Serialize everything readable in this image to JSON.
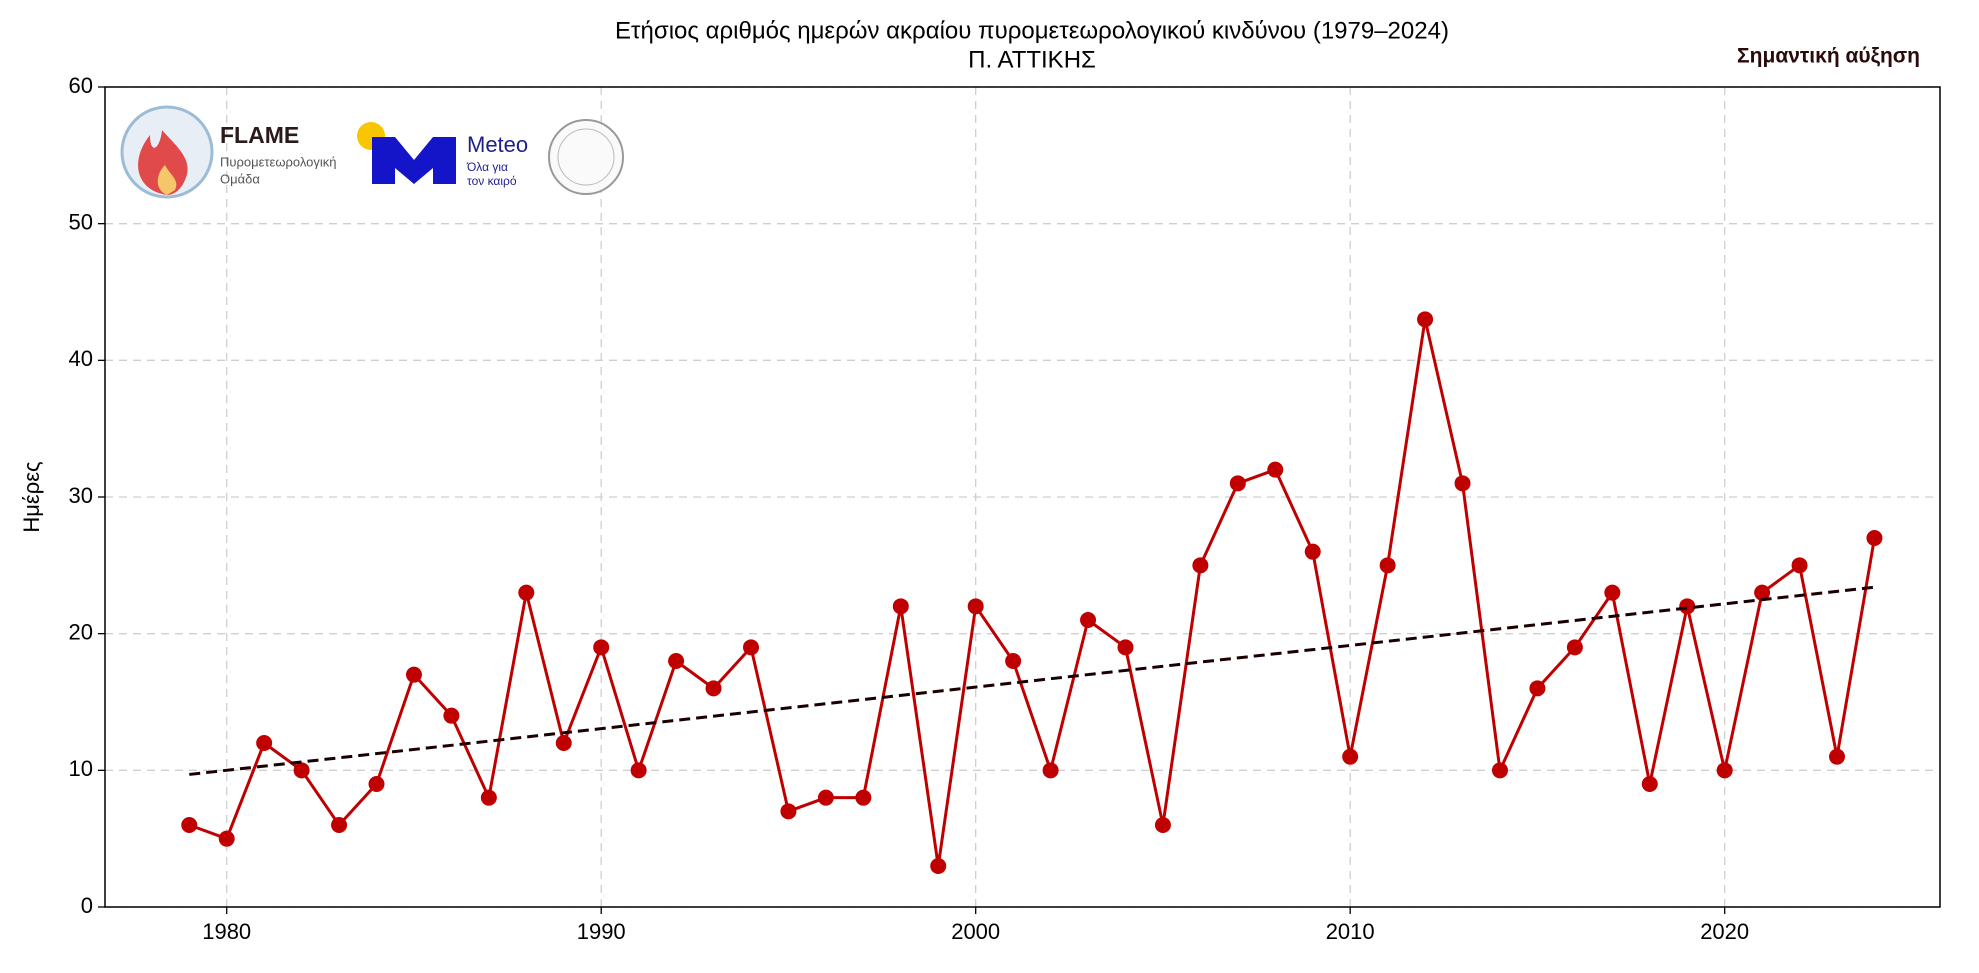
{
  "chart_data": {
    "type": "line",
    "title": "Ετήσιος αριθμός ημερών ακραίου πυρομετεωρολογικού κινδύνου (1979–2024)",
    "subtitle": "Π. ΑΤΤΙΚΗΣ",
    "annotation": "Σημαντική αύξηση",
    "y_label": "Ημέρες",
    "x": [
      1979,
      1980,
      1981,
      1982,
      1983,
      1984,
      1985,
      1986,
      1987,
      1988,
      1989,
      1990,
      1991,
      1992,
      1993,
      1994,
      1995,
      1996,
      1997,
      1998,
      1999,
      2000,
      2001,
      2002,
      2003,
      2004,
      2005,
      2006,
      2007,
      2008,
      2009,
      2010,
      2011,
      2012,
      2013,
      2014,
      2015,
      2016,
      2017,
      2018,
      2019,
      2020,
      2021,
      2022,
      2023,
      2024
    ],
    "series": [
      {
        "color": "#c00000",
        "values": [
          6,
          5,
          12,
          10,
          6,
          9,
          17,
          14,
          8,
          23,
          12,
          19,
          10,
          18,
          16,
          19,
          7,
          8,
          8,
          22,
          3,
          22,
          18,
          10,
          21,
          19,
          6,
          25,
          31,
          32,
          26,
          11,
          25,
          43,
          31,
          10,
          16,
          19,
          23,
          9,
          22,
          10,
          23,
          25,
          11,
          27
        ]
      }
    ],
    "trend": {
      "color": "#1a0000",
      "x": [
        1979,
        2024
      ],
      "values": [
        9.7,
        23.4
      ]
    },
    "xlim": [
      1976.75,
      2025.75
    ],
    "xticks": [
      1980,
      1990,
      2000,
      2010,
      2020
    ],
    "ylim": [
      0,
      60
    ],
    "yticks": [
      0,
      10,
      20,
      30,
      40,
      50,
      60
    ],
    "grid": true
  },
  "logos": {
    "flame": "FLAME",
    "flame_sub1": "Πυρομετεωρολογική",
    "flame_sub2": "Ομάδα",
    "meteo": "Meteo",
    "meteo_sub1": "Όλα για",
    "meteo_sub2": "τον καιρό"
  }
}
